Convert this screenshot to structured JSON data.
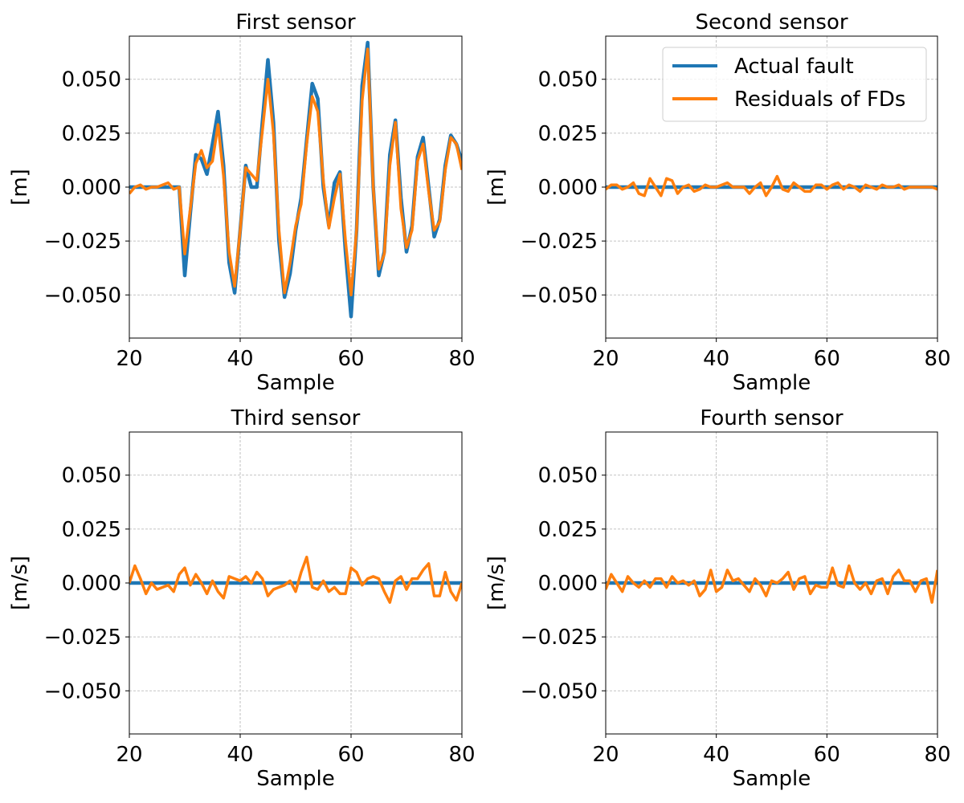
{
  "chart_data": [
    {
      "type": "line",
      "title": "First sensor",
      "xlabel": "Sample",
      "ylabel": "[m]",
      "xlim": [
        20,
        80
      ],
      "ylim": [
        -0.07,
        0.07
      ],
      "xticks": [
        20,
        40,
        60,
        80
      ],
      "xtick_labels": [
        "20",
        "40",
        "60",
        "80"
      ],
      "yticks": [
        -0.05,
        -0.025,
        0,
        0.025,
        0.05
      ],
      "ytick_labels": [
        "−0.050",
        "−0.025",
        "0.000",
        "0.025",
        "0.050"
      ],
      "grid": true,
      "x_start": 20,
      "series": [
        {
          "name": "Actual fault",
          "color": "#1f77b4",
          "values": [
            0.0,
            0.0,
            0.0,
            0.0,
            0.0,
            0.0,
            0.0,
            0.0,
            0.0,
            0.0,
            -0.041,
            -0.012,
            0.015,
            0.013,
            0.006,
            0.02,
            0.035,
            0.01,
            -0.035,
            -0.049,
            -0.02,
            0.01,
            0.0,
            0.0,
            0.03,
            0.059,
            0.03,
            -0.025,
            -0.051,
            -0.04,
            -0.02,
            -0.005,
            0.022,
            0.048,
            0.041,
            0.0,
            -0.018,
            0.002,
            0.007,
            -0.03,
            -0.06,
            -0.02,
            0.047,
            0.067,
            0.0,
            -0.041,
            -0.03,
            0.015,
            0.031,
            -0.005,
            -0.03,
            -0.018,
            0.014,
            0.023,
            0.0,
            -0.023,
            -0.015,
            0.01,
            0.024,
            0.02,
            0.012
          ]
        },
        {
          "name": "Residuals of FDs",
          "color": "#ff7f0e",
          "values": [
            -0.003,
            0.0,
            0.001,
            -0.001,
            0.0,
            0.0,
            0.001,
            0.002,
            -0.001,
            0.0,
            -0.031,
            -0.01,
            0.011,
            0.017,
            0.009,
            0.012,
            0.029,
            0.005,
            -0.03,
            -0.046,
            -0.02,
            0.009,
            0.006,
            0.003,
            0.026,
            0.05,
            0.025,
            -0.02,
            -0.049,
            -0.035,
            -0.018,
            -0.008,
            0.02,
            0.042,
            0.035,
            0.003,
            -0.019,
            -0.005,
            0.006,
            -0.025,
            -0.05,
            -0.02,
            0.04,
            0.064,
            0.0,
            -0.038,
            -0.031,
            0.01,
            0.03,
            -0.01,
            -0.028,
            -0.02,
            0.012,
            0.02,
            -0.002,
            -0.02,
            -0.016,
            0.008,
            0.023,
            0.02,
            0.008
          ]
        }
      ]
    },
    {
      "type": "line",
      "title": "Second sensor",
      "xlabel": "Sample",
      "ylabel": "[m]",
      "xlim": [
        20,
        80
      ],
      "ylim": [
        -0.07,
        0.07
      ],
      "xticks": [
        20,
        40,
        60,
        80
      ],
      "xtick_labels": [
        "20",
        "40",
        "60",
        "80"
      ],
      "yticks": [
        -0.05,
        -0.025,
        0,
        0.025,
        0.05
      ],
      "ytick_labels": [
        "−0.050",
        "−0.025",
        "0.000",
        "0.025",
        "0.050"
      ],
      "grid": true,
      "legend": "top-right",
      "x_start": 20,
      "series": [
        {
          "name": "Actual fault",
          "color": "#1f77b4",
          "values": [
            0,
            0,
            0,
            0,
            0,
            0,
            0,
            0,
            0,
            0,
            0,
            0,
            0,
            0,
            0,
            0,
            0,
            0,
            0,
            0,
            0,
            0,
            0,
            0,
            0,
            0,
            0,
            0,
            0,
            0,
            0,
            0,
            0,
            0,
            0,
            0,
            0,
            0,
            0,
            0,
            0,
            0,
            0,
            0,
            0,
            0,
            0,
            0,
            0,
            0,
            0,
            0,
            0,
            0,
            0,
            0,
            0,
            0,
            0,
            0,
            0
          ]
        },
        {
          "name": "Residuals of FDs",
          "color": "#ff7f0e",
          "values": [
            -0.001,
            0.001,
            0.001,
            -0.001,
            0.0,
            0.002,
            -0.003,
            -0.004,
            0.004,
            0.0,
            -0.004,
            0.004,
            0.003,
            -0.003,
            0.0,
            0.001,
            -0.002,
            -0.001,
            0.001,
            0.0,
            0.0,
            0.001,
            0.002,
            0.0,
            0.0,
            0.0,
            -0.003,
            0.0,
            0.002,
            -0.004,
            0.0,
            0.005,
            -0.001,
            -0.002,
            0.002,
            0.0,
            -0.002,
            -0.002,
            0.001,
            0.001,
            -0.001,
            0.001,
            0.002,
            -0.001,
            0.001,
            0.0,
            -0.002,
            0.001,
            0.0,
            -0.001,
            0.001,
            0.0,
            0.0,
            0.001,
            -0.001,
            0.0,
            0.0,
            0.0,
            0.0,
            0.0,
            -0.001
          ]
        }
      ]
    },
    {
      "type": "line",
      "title": "Third sensor",
      "xlabel": "Sample",
      "ylabel": "[m/s]",
      "xlim": [
        20,
        80
      ],
      "ylim": [
        -0.07,
        0.07
      ],
      "xticks": [
        20,
        40,
        60,
        80
      ],
      "xtick_labels": [
        "20",
        "40",
        "60",
        "80"
      ],
      "yticks": [
        -0.05,
        -0.025,
        0,
        0.025,
        0.05
      ],
      "ytick_labels": [
        "−0.050",
        "−0.025",
        "0.000",
        "0.025",
        "0.050"
      ],
      "grid": true,
      "x_start": 20,
      "series": [
        {
          "name": "Actual fault",
          "color": "#1f77b4",
          "values": [
            0,
            0,
            0,
            0,
            0,
            0,
            0,
            0,
            0,
            0,
            0,
            0,
            0,
            0,
            0,
            0,
            0,
            0,
            0,
            0,
            0,
            0,
            0,
            0,
            0,
            0,
            0,
            0,
            0,
            0,
            0,
            0,
            0,
            0,
            0,
            0,
            0,
            0,
            0,
            0,
            0,
            0,
            0,
            0,
            0,
            0,
            0,
            0,
            0,
            0,
            0,
            0,
            0,
            0,
            0,
            0,
            0,
            0,
            0,
            0,
            0
          ]
        },
        {
          "name": "Residuals of FDs",
          "color": "#ff7f0e",
          "values": [
            0.0,
            0.008,
            0.002,
            -0.005,
            0.0,
            -0.003,
            -0.002,
            -0.001,
            -0.004,
            0.004,
            0.007,
            -0.001,
            0.004,
            0.0,
            -0.005,
            0.001,
            -0.004,
            -0.007,
            0.003,
            0.002,
            0.001,
            0.003,
            0.0,
            0.005,
            0.002,
            -0.006,
            -0.003,
            -0.002,
            -0.001,
            0.001,
            -0.004,
            0.005,
            0.012,
            -0.002,
            -0.003,
            0.001,
            -0.004,
            -0.002,
            -0.005,
            -0.005,
            0.007,
            0.005,
            -0.001,
            0.002,
            0.003,
            0.002,
            -0.004,
            -0.009,
            0.001,
            0.003,
            -0.003,
            0.002,
            0.002,
            0.006,
            0.009,
            -0.006,
            -0.006,
            0.005,
            -0.004,
            -0.008,
            0.0
          ]
        }
      ]
    },
    {
      "type": "line",
      "title": "Fourth sensor",
      "xlabel": "Sample",
      "ylabel": "[m/s]",
      "xlim": [
        20,
        80
      ],
      "ylim": [
        -0.07,
        0.07
      ],
      "xticks": [
        20,
        40,
        60,
        80
      ],
      "xtick_labels": [
        "20",
        "40",
        "60",
        "80"
      ],
      "yticks": [
        -0.05,
        -0.025,
        0,
        0.025,
        0.05
      ],
      "ytick_labels": [
        "−0.050",
        "−0.025",
        "0.000",
        "0.025",
        "0.050"
      ],
      "grid": true,
      "x_start": 20,
      "series": [
        {
          "name": "Actual fault",
          "color": "#1f77b4",
          "values": [
            0,
            0,
            0,
            0,
            0,
            0,
            0,
            0,
            0,
            0,
            0,
            0,
            0,
            0,
            0,
            0,
            0,
            0,
            0,
            0,
            0,
            0,
            0,
            0,
            0,
            0,
            0,
            0,
            0,
            0,
            0,
            0,
            0,
            0,
            0,
            0,
            0,
            0,
            0,
            0,
            0,
            0,
            0,
            0,
            0,
            0,
            0,
            0,
            0,
            0,
            0,
            0,
            0,
            0,
            0,
            0,
            0,
            0,
            0,
            0,
            0
          ]
        },
        {
          "name": "Residuals of FDs",
          "color": "#ff7f0e",
          "values": [
            -0.003,
            0.004,
            0.0,
            -0.004,
            0.003,
            0.0,
            -0.002,
            0.001,
            -0.002,
            0.002,
            0.002,
            -0.002,
            0.003,
            0.0,
            0.001,
            -0.001,
            0.001,
            -0.006,
            -0.003,
            0.006,
            -0.004,
            -0.002,
            0.006,
            0.001,
            0.002,
            -0.001,
            -0.004,
            0.002,
            -0.001,
            -0.006,
            0.001,
            0.0,
            0.002,
            0.005,
            -0.003,
            0.002,
            0.003,
            -0.005,
            -0.001,
            -0.002,
            -0.002,
            0.007,
            -0.001,
            -0.002,
            0.008,
            0.0,
            -0.003,
            0.0,
            -0.005,
            0.001,
            0.002,
            -0.005,
            0.003,
            0.006,
            0.001,
            0.001,
            -0.004,
            0.001,
            0.002,
            -0.009,
            0.006
          ]
        }
      ]
    }
  ]
}
